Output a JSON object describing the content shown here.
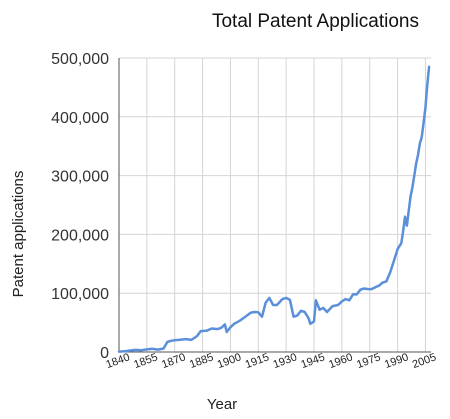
{
  "chart_data": {
    "type": "line",
    "title": "Total Patent Applications",
    "xlabel": "Year",
    "ylabel": "Patent applications",
    "xlim": [
      1840,
      2008
    ],
    "ylim": [
      0,
      500000
    ],
    "grid": true,
    "x_ticks": [
      1840,
      1855,
      1870,
      1885,
      1900,
      1915,
      1930,
      1945,
      1960,
      1975,
      1990,
      2005
    ],
    "y_ticks": [
      0,
      100000,
      200000,
      300000,
      400000,
      500000
    ],
    "y_tick_labels": [
      "0",
      "100,000",
      "200,000",
      "300,000",
      "400,000",
      "500,000"
    ],
    "series": [
      {
        "color": "#5b8fd9",
        "x": [
          1840,
          1843,
          1846,
          1849,
          1852,
          1855,
          1858,
          1861,
          1864,
          1866,
          1868,
          1870,
          1873,
          1876,
          1879,
          1882,
          1884,
          1887,
          1890,
          1893,
          1895,
          1897,
          1898,
          1900,
          1902,
          1905,
          1908,
          1911,
          1913,
          1915,
          1917,
          1919,
          1921,
          1923,
          1925,
          1928,
          1930,
          1932,
          1934,
          1936,
          1938,
          1940,
          1942,
          1943,
          1945,
          1946,
          1948,
          1950,
          1952,
          1955,
          1958,
          1960,
          1962,
          1964,
          1966,
          1968,
          1970,
          1972,
          1974,
          1976,
          1978,
          1980,
          1982,
          1984,
          1985,
          1986,
          1988,
          1990,
          1992,
          1993,
          1994,
          1995,
          1996,
          1997,
          1998,
          1999,
          2000,
          2001,
          2002,
          2003,
          2004,
          2005,
          2006,
          2007
        ],
        "values": [
          750,
          1200,
          2500,
          3500,
          3000,
          4500,
          5500,
          4000,
          6000,
          17000,
          19000,
          20000,
          21000,
          22000,
          20500,
          27000,
          35500,
          36000,
          40000,
          39000,
          41000,
          47000,
          34000,
          42000,
          48000,
          53000,
          60000,
          67000,
          68000,
          67500,
          60000,
          84000,
          92000,
          80000,
          80000,
          90000,
          92000,
          89000,
          60000,
          62000,
          70000,
          68000,
          58000,
          48000,
          52000,
          88000,
          72000,
          75000,
          68000,
          78000,
          80000,
          86000,
          90000,
          88000,
          98000,
          98000,
          106000,
          108000,
          107000,
          107000,
          110000,
          113000,
          118000,
          120000,
          128000,
          135000,
          155000,
          175000,
          185000,
          205000,
          230000,
          215000,
          240000,
          265000,
          280000,
          300000,
          320000,
          335000,
          355000,
          365000,
          390000,
          415000,
          455000,
          485000
        ]
      }
    ]
  }
}
